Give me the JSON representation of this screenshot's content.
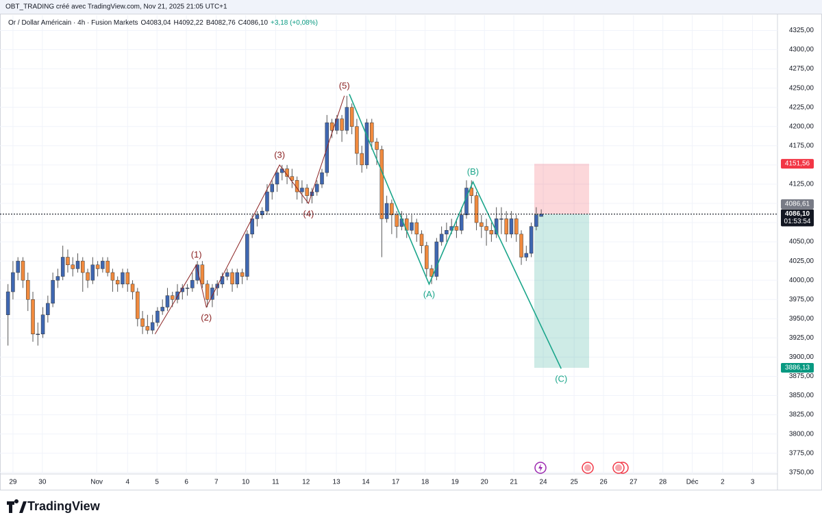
{
  "header": "OBT_TRADING créé avec TradingView.com, Nov 21, 2025 21:05 UTC+1",
  "brand": "TradingView",
  "chart_data": {
    "type": "candlestick",
    "symbol": "Or / Dollar Américain · 4h · Fusion Markets",
    "legend": {
      "open": "O4083,04",
      "high": "H4092,22",
      "low": "B4082,76",
      "close": "C4086,10",
      "change": "+3,18 (+0,08%)"
    },
    "up_color": "#3f67b1",
    "down_color": "#f08a3e",
    "candles": [
      [
        3955,
        3995,
        3915,
        3985
      ],
      [
        3985,
        4025,
        3975,
        4010
      ],
      [
        4010,
        4030,
        4000,
        4025
      ],
      [
        4025,
        4030,
        3990,
        4000
      ],
      [
        4000,
        4010,
        3960,
        3975
      ],
      [
        3975,
        3985,
        3920,
        3930
      ],
      [
        3930,
        3945,
        3915,
        3930
      ],
      [
        3930,
        3965,
        3925,
        3955
      ],
      [
        3955,
        3980,
        3945,
        3970
      ],
      [
        3970,
        4010,
        3965,
        4000
      ],
      [
        4000,
        4015,
        3990,
        4005
      ],
      [
        4005,
        4045,
        4000,
        4030
      ],
      [
        4030,
        4040,
        4010,
        4020
      ],
      [
        4020,
        4030,
        4005,
        4015
      ],
      [
        4015,
        4035,
        4010,
        4025
      ],
      [
        4025,
        4030,
        3985,
        4010
      ],
      [
        4010,
        4015,
        3990,
        4000
      ],
      [
        4000,
        4030,
        3995,
        4020
      ],
      [
        4020,
        4025,
        4005,
        4015
      ],
      [
        4015,
        4030,
        4010,
        4025
      ],
      [
        4025,
        4030,
        4005,
        4010
      ],
      [
        4010,
        4015,
        3985,
        4000
      ],
      [
        4000,
        4005,
        3985,
        3995
      ],
      [
        3995,
        4015,
        3990,
        4010
      ],
      [
        4010,
        4015,
        3985,
        3995
      ],
      [
        3995,
        4000,
        3975,
        3985
      ],
      [
        3985,
        3990,
        3940,
        3950
      ],
      [
        3950,
        3960,
        3930,
        3940
      ],
      [
        3940,
        3955,
        3930,
        3935
      ],
      [
        3935,
        3955,
        3930,
        3945
      ],
      [
        3945,
        3965,
        3940,
        3960
      ],
      [
        3960,
        3975,
        3955,
        3965
      ],
      [
        3965,
        3990,
        3960,
        3980
      ],
      [
        3980,
        3985,
        3965,
        3975
      ],
      [
        3975,
        3995,
        3970,
        3985
      ],
      [
        3985,
        3995,
        3975,
        3990
      ],
      [
        3990,
        3995,
        3980,
        3990
      ],
      [
        3990,
        4010,
        3985,
        4000
      ],
      [
        4000,
        4025,
        3995,
        4020
      ],
      [
        4020,
        4025,
        3990,
        3995
      ],
      [
        3995,
        4000,
        3965,
        3975
      ],
      [
        3975,
        3995,
        3965,
        3990
      ],
      [
        3990,
        4000,
        3980,
        3995
      ],
      [
        3995,
        4010,
        3990,
        4005
      ],
      [
        4005,
        4015,
        4000,
        4010
      ],
      [
        4010,
        4015,
        3985,
        3995
      ],
      [
        3995,
        4015,
        3990,
        4010
      ],
      [
        4010,
        4015,
        3995,
        4005
      ],
      [
        4005,
        4065,
        4000,
        4060
      ],
      [
        4060,
        4085,
        4055,
        4080
      ],
      [
        4080,
        4090,
        4070,
        4085
      ],
      [
        4085,
        4095,
        4080,
        4090
      ],
      [
        4090,
        4125,
        4085,
        4115
      ],
      [
        4115,
        4130,
        4105,
        4125
      ],
      [
        4125,
        4145,
        4115,
        4140
      ],
      [
        4140,
        4150,
        4130,
        4145
      ],
      [
        4145,
        4150,
        4125,
        4135
      ],
      [
        4135,
        4145,
        4120,
        4130
      ],
      [
        4130,
        4135,
        4105,
        4115
      ],
      [
        4115,
        4130,
        4100,
        4120
      ],
      [
        4120,
        4125,
        4100,
        4110
      ],
      [
        4110,
        4120,
        4100,
        4115
      ],
      [
        4115,
        4130,
        4110,
        4125
      ],
      [
        4125,
        4145,
        4120,
        4140
      ],
      [
        4140,
        4215,
        4135,
        4205
      ],
      [
        4205,
        4210,
        4185,
        4195
      ],
      [
        4195,
        4215,
        4190,
        4210
      ],
      [
        4210,
        4215,
        4180,
        4195
      ],
      [
        4195,
        4240,
        4190,
        4225
      ],
      [
        4225,
        4230,
        4190,
        4200
      ],
      [
        4200,
        4210,
        4150,
        4165
      ],
      [
        4165,
        4175,
        4140,
        4150
      ],
      [
        4150,
        4210,
        4145,
        4205
      ],
      [
        4205,
        4210,
        4170,
        4180
      ],
      [
        4180,
        4185,
        4150,
        4170
      ],
      [
        4170,
        4175,
        4030,
        4080
      ],
      [
        4080,
        4110,
        4075,
        4100
      ],
      [
        4100,
        4105,
        4060,
        4085
      ],
      [
        4085,
        4090,
        4055,
        4070
      ],
      [
        4070,
        4090,
        4065,
        4080
      ],
      [
        4080,
        4085,
        4055,
        4065
      ],
      [
        4065,
        4085,
        4060,
        4075
      ],
      [
        4075,
        4080,
        4050,
        4060
      ],
      [
        4060,
        4065,
        4035,
        4045
      ],
      [
        4045,
        4050,
        4005,
        4015
      ],
      [
        4015,
        4020,
        3995,
        4005
      ],
      [
        4005,
        4055,
        4000,
        4050
      ],
      [
        4050,
        4070,
        4045,
        4060
      ],
      [
        4060,
        4075,
        4050,
        4065
      ],
      [
        4065,
        4080,
        4060,
        4070
      ],
      [
        4070,
        4080,
        4055,
        4065
      ],
      [
        4065,
        4095,
        4060,
        4085
      ],
      [
        4085,
        4130,
        4080,
        4120
      ],
      [
        4120,
        4130,
        4100,
        4110
      ],
      [
        4110,
        4115,
        4065,
        4075
      ],
      [
        4075,
        4085,
        4055,
        4070
      ],
      [
        4070,
        4080,
        4045,
        4065
      ],
      [
        4065,
        4075,
        4050,
        4060
      ],
      [
        4060,
        4095,
        4055,
        4080
      ],
      [
        4080,
        4095,
        4060,
        4080
      ],
      [
        4080,
        4090,
        4050,
        4060
      ],
      [
        4060,
        4090,
        4055,
        4080
      ],
      [
        4080,
        4085,
        4050,
        4060
      ],
      [
        4060,
        4065,
        4020,
        4030
      ],
      [
        4030,
        4045,
        4025,
        4035
      ],
      [
        4035,
        4075,
        4030,
        4070
      ],
      [
        4070,
        4095,
        4065,
        4085
      ],
      [
        4083.04,
        4092.22,
        4082.76,
        4086.1
      ]
    ],
    "xlim": [
      -1.6,
      154.4
    ],
    "xticks": [
      {
        "value": 1.0,
        "label": "29"
      },
      {
        "value": 6.9,
        "label": "30"
      },
      {
        "value": 17.8,
        "label": "Nov"
      },
      {
        "value": 24,
        "label": "4"
      },
      {
        "value": 29.9,
        "label": "5"
      },
      {
        "value": 35.8,
        "label": "6"
      },
      {
        "value": 41.8,
        "label": "7"
      },
      {
        "value": 47.7,
        "label": "10"
      },
      {
        "value": 53.7,
        "label": "11"
      },
      {
        "value": 59.8,
        "label": "12"
      },
      {
        "value": 65.9,
        "label": "13"
      },
      {
        "value": 71.8,
        "label": "14"
      },
      {
        "value": 77.8,
        "label": "17"
      },
      {
        "value": 83.7,
        "label": "18"
      },
      {
        "value": 89.7,
        "label": "19"
      },
      {
        "value": 95.6,
        "label": "20"
      },
      {
        "value": 101.5,
        "label": "21"
      },
      {
        "value": 107.4,
        "label": "24"
      },
      {
        "value": 113.6,
        "label": "25"
      },
      {
        "value": 119.5,
        "label": "26"
      },
      {
        "value": 125.5,
        "label": "27"
      },
      {
        "value": 131.4,
        "label": "28"
      },
      {
        "value": 137.3,
        "label": "Déc"
      },
      {
        "value": 143.4,
        "label": "2"
      },
      {
        "value": 149.4,
        "label": "3"
      }
    ],
    "ylim": [
      3748,
      4345
    ],
    "yticks": [
      {
        "value": 3750,
        "label": "3750,00"
      },
      {
        "value": 3775,
        "label": "3775,00"
      },
      {
        "value": 3800,
        "label": "3800,00"
      },
      {
        "value": 3825,
        "label": "3825,00"
      },
      {
        "value": 3850,
        "label": "3850,00"
      },
      {
        "value": 3875,
        "label": "3875,00"
      },
      {
        "value": 3900,
        "label": "3900,00"
      },
      {
        "value": 3925,
        "label": "3925,00"
      },
      {
        "value": 3950,
        "label": "3950,00"
      },
      {
        "value": 3975,
        "label": "3975,00"
      },
      {
        "value": 4000,
        "label": "4000,00"
      },
      {
        "value": 4025,
        "label": "4025,00"
      },
      {
        "value": 4050,
        "label": "4050,00"
      },
      {
        "value": 4075,
        "label": "4075,00"
      },
      {
        "value": 4100,
        "label": "4100,00"
      },
      {
        "value": 4125,
        "label": "4125,00"
      },
      {
        "value": 4150,
        "label": "4150,00"
      },
      {
        "value": 4175,
        "label": "4175,00"
      },
      {
        "value": 4200,
        "label": "4200,00"
      },
      {
        "value": 4225,
        "label": "4225,00"
      },
      {
        "value": 4250,
        "label": "4250,00"
      },
      {
        "value": 4275,
        "label": "4275,00"
      },
      {
        "value": 4300,
        "label": "4300,00"
      },
      {
        "value": 4325,
        "label": "4325,00"
      }
    ],
    "grid": true,
    "waves": [
      {
        "color": "#8b2323",
        "points": [
          [
            29.5,
            3930
          ],
          [
            37.8,
            4020
          ],
          [
            39.8,
            3965
          ],
          [
            54.5,
            4150
          ],
          [
            60.3,
            4100
          ],
          [
            67.5,
            4240
          ]
        ],
        "labels": [
          null,
          "(1)",
          "(2)",
          "(3)",
          "(4)",
          "(5)"
        ]
      },
      {
        "color": "#1aa58a",
        "points": [
          [
            68.5,
            4242
          ],
          [
            84.5,
            3995
          ],
          [
            93.3,
            4128
          ],
          [
            111,
            3885
          ]
        ],
        "labels": [
          null,
          "(A)",
          "(B)",
          "(C)"
        ]
      }
    ],
    "position": {
      "stop": {
        "value": 4151.56,
        "label": "4151,56"
      },
      "target": {
        "value": 3886.13,
        "label": "3886,13"
      }
    },
    "mark_price": {
      "value": 4086.61,
      "label": "4086,61"
    },
    "current": {
      "value": 4086.1,
      "label": "4086,10",
      "countdown": "01:53:54"
    }
  }
}
